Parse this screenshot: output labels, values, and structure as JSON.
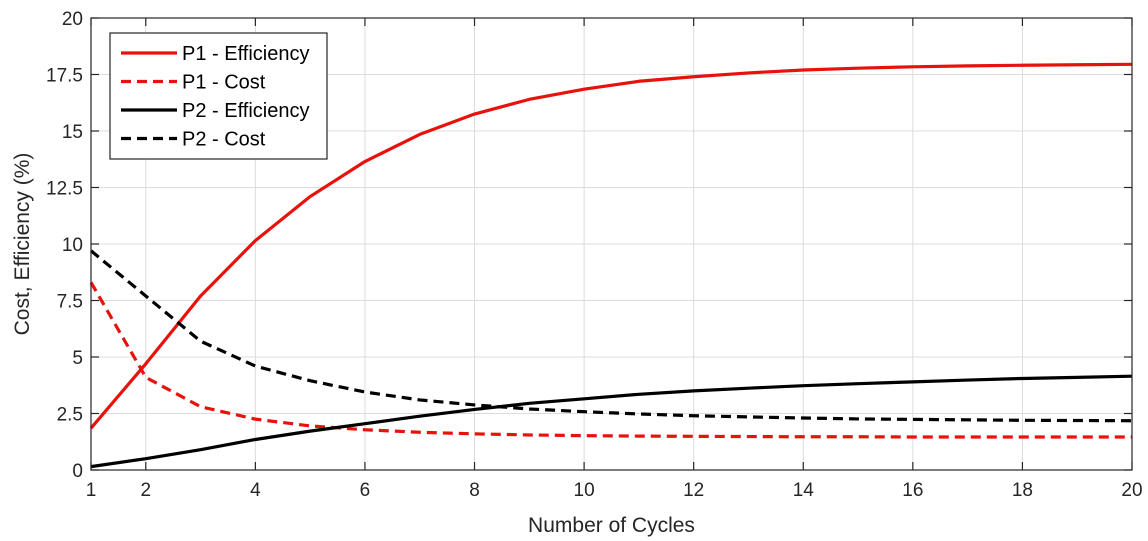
{
  "chart_data": {
    "type": "line",
    "title": "",
    "xlabel": "Number of Cycles",
    "ylabel": "Cost, Efficiency (%)",
    "xlim": [
      1,
      20
    ],
    "ylim": [
      0,
      20
    ],
    "xticks": [
      1,
      2,
      4,
      6,
      8,
      10,
      12,
      14,
      16,
      18,
      20
    ],
    "xtick_labels": [
      "1",
      "2",
      "4",
      "6",
      "8",
      "10",
      "12",
      "14",
      "16",
      "18",
      "20"
    ],
    "yticks": [
      0,
      2.5,
      5,
      7.5,
      10,
      12.5,
      15,
      17.5,
      20
    ],
    "ytick_labels": [
      "0",
      "2.5",
      "5",
      "7.5",
      "10",
      "12.5",
      "15",
      "17.5",
      "20"
    ],
    "grid": true,
    "legend_position": "top-left",
    "x": [
      1,
      2,
      3,
      4,
      5,
      6,
      7,
      8,
      9,
      10,
      11,
      12,
      13,
      14,
      15,
      16,
      17,
      18,
      19,
      20
    ],
    "series": [
      {
        "name": "P1 - Efficiency",
        "color": "#e8120c",
        "dash": "solid",
        "values": [
          1.85,
          4.7,
          7.7,
          10.15,
          12.1,
          13.65,
          14.85,
          15.75,
          16.4,
          16.85,
          17.2,
          17.4,
          17.57,
          17.7,
          17.78,
          17.84,
          17.88,
          17.91,
          17.93,
          17.95
        ]
      },
      {
        "name": "P1 - Cost",
        "color": "#e8120c",
        "dash": "dashed",
        "values": [
          8.3,
          4.1,
          2.8,
          2.25,
          1.95,
          1.78,
          1.67,
          1.6,
          1.55,
          1.52,
          1.5,
          1.49,
          1.48,
          1.47,
          1.47,
          1.46,
          1.46,
          1.46,
          1.46,
          1.46
        ]
      },
      {
        "name": "P2 - Efficiency",
        "color": "#000000",
        "dash": "solid",
        "values": [
          0.15,
          0.5,
          0.9,
          1.35,
          1.72,
          2.05,
          2.38,
          2.68,
          2.95,
          3.15,
          3.35,
          3.5,
          3.62,
          3.73,
          3.82,
          3.9,
          3.98,
          4.05,
          4.1,
          4.15
        ]
      },
      {
        "name": "P2 - Cost",
        "color": "#000000",
        "dash": "dashed",
        "values": [
          9.7,
          7.7,
          5.7,
          4.6,
          3.95,
          3.45,
          3.1,
          2.88,
          2.7,
          2.58,
          2.48,
          2.4,
          2.35,
          2.3,
          2.26,
          2.24,
          2.22,
          2.2,
          2.19,
          2.18
        ]
      }
    ]
  }
}
